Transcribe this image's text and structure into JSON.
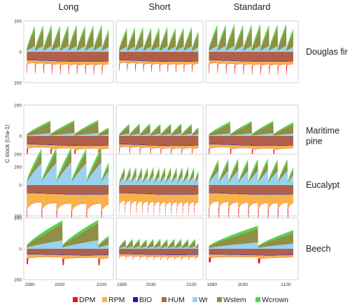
{
  "chart_data": {
    "type": "area",
    "columns": [
      "Long",
      "Short",
      "Standard"
    ],
    "rows": [
      [
        "Douglas fir"
      ],
      [
        "Maritime",
        "pine"
      ],
      [
        "Eucalypt"
      ],
      [
        "Beech"
      ]
    ],
    "ylabel": "C stock (t.ha-1)",
    "x_ticks": [
      1980,
      2030,
      2100
    ],
    "xlim": [
      1970,
      2120
    ],
    "ylim": [
      -200,
      200
    ],
    "y_ticks": [
      200,
      0,
      200
    ],
    "series": [
      {
        "name": "DPM",
        "color": "#e8141e"
      },
      {
        "name": "RPM",
        "color": "#f9b14a"
      },
      {
        "name": "BIO",
        "color": "#1a1aa8"
      },
      {
        "name": "HUM",
        "color": "#b0604a"
      },
      {
        "name": "Wr",
        "color": "#99d2ee"
      },
      {
        "name": "Wstem",
        "color": "#8f8f45"
      },
      {
        "name": "Wcrown",
        "color": "#56d44e"
      }
    ],
    "panels": {
      "Douglas fir": {
        "Long": {
          "cycle_years": 14,
          "peak_total": 175,
          "wr_share": 0.22,
          "crown": 22,
          "hum": 62,
          "rpm": 30,
          "dpm_spike": 55
        },
        "Short": {
          "cycle_years": 14,
          "peak_total": 160,
          "wr_share": 0.22,
          "crown": 20,
          "hum": 62,
          "rpm": 25,
          "dpm_spike": 45
        },
        "Standard": {
          "cycle_years": 14,
          "peak_total": 180,
          "wr_share": 0.22,
          "crown": 22,
          "hum": 62,
          "rpm": 30,
          "dpm_spike": 55
        }
      },
      "Maritime pine": {
        "Long": {
          "cycle_years": 40,
          "peak_total": 100,
          "wr_share": 0.18,
          "crown": 12,
          "hum": 62,
          "rpm": 28,
          "dpm_spike": 40
        },
        "Short": {
          "cycle_years": 18,
          "peak_total": 80,
          "wr_share": 0.2,
          "crown": 10,
          "hum": 62,
          "rpm": 25,
          "dpm_spike": 35
        },
        "Standard": {
          "cycle_years": 35,
          "peak_total": 95,
          "wr_share": 0.18,
          "crown": 12,
          "hum": 62,
          "rpm": 28,
          "dpm_spike": 40
        }
      },
      "Eucalypt": {
        "Long": {
          "cycle_years": 25,
          "peak_total": 240,
          "wr_share": 0.6,
          "crown": 25,
          "hum": 60,
          "rpm": 110,
          "dpm_spike": 80
        },
        "Short": {
          "cycle_years": 10,
          "peak_total": 120,
          "wr_share": 0.5,
          "crown": 15,
          "hum": 60,
          "rpm": 90,
          "dpm_spike": 60
        },
        "Standard": {
          "cycle_years": 16,
          "peak_total": 170,
          "wr_share": 0.55,
          "crown": 20,
          "hum": 60,
          "rpm": 100,
          "dpm_spike": 70
        }
      },
      "Beech": {
        "Long": {
          "cycle_years": 60,
          "peak_total": 185,
          "wr_share": 0.3,
          "crown": 20,
          "hum": 40,
          "rpm": 25,
          "dpm_spike": 40
        },
        "Short": {
          "cycle_years": 12,
          "peak_total": 65,
          "wr_share": 0.25,
          "crown": 10,
          "hum": 38,
          "rpm": 20,
          "dpm_spike": 20
        },
        "Standard": {
          "cycle_years": 80,
          "peak_total": 150,
          "wr_share": 0.28,
          "crown": 18,
          "hum": 40,
          "rpm": 22,
          "dpm_spike": 30
        }
      }
    }
  }
}
